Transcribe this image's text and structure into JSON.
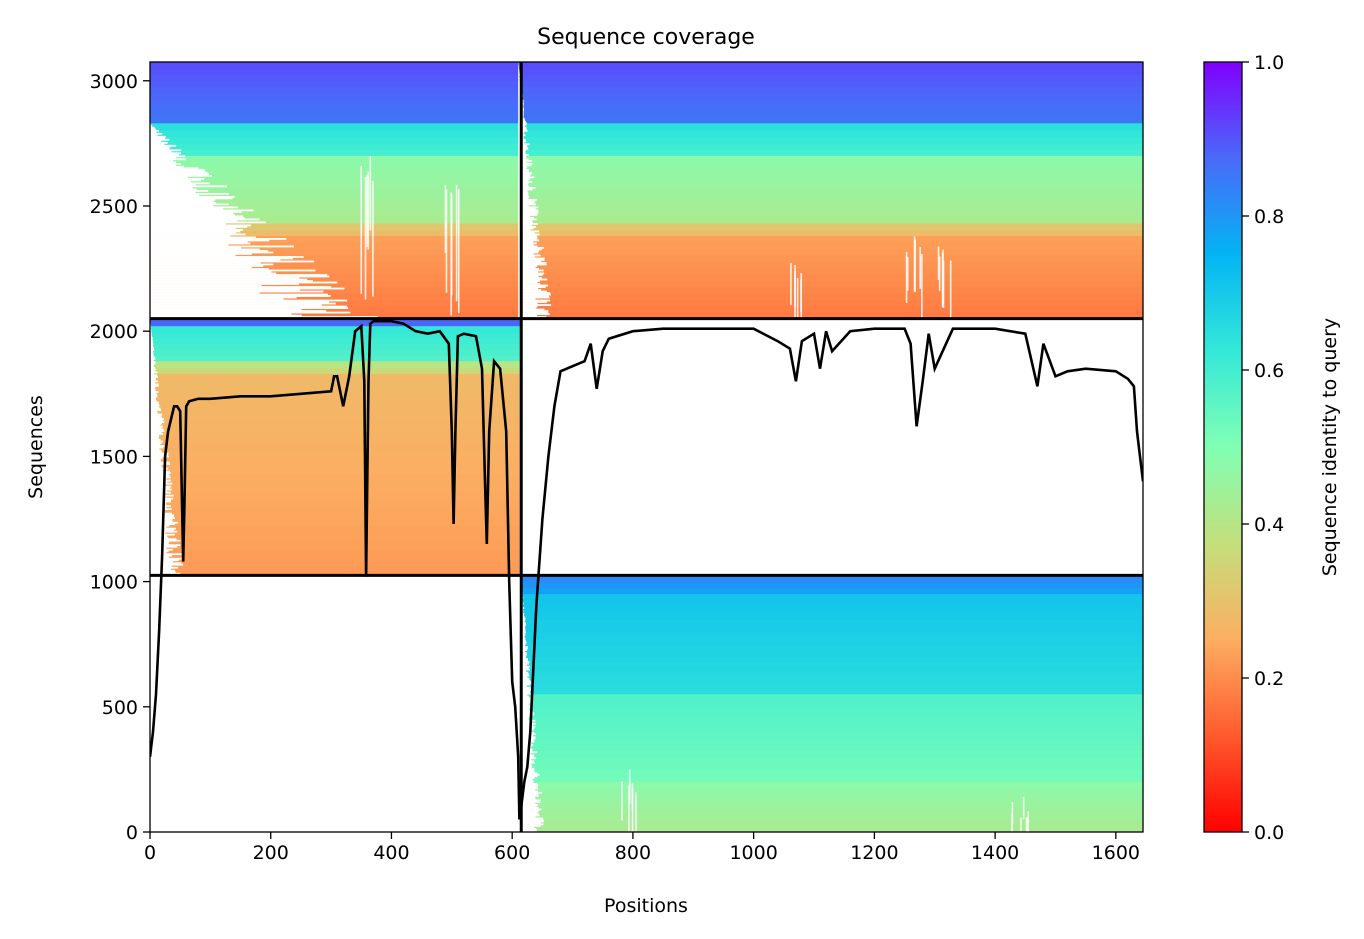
{
  "chart_data": {
    "type": "heatmap",
    "title": "Sequence coverage",
    "xlabel": "Positions",
    "ylabel": "Sequences",
    "xlim": [
      0,
      1645
    ],
    "ylim": [
      0,
      3075
    ],
    "xticks": [
      0,
      200,
      400,
      600,
      800,
      1000,
      1200,
      1400,
      1600
    ],
    "yticks": [
      0,
      500,
      1000,
      1500,
      2000,
      2500,
      3000
    ],
    "colorbar": {
      "label": "Sequence identity to query",
      "range": [
        0,
        1
      ],
      "ticks": [
        0.0,
        0.2,
        0.4,
        0.6,
        0.8,
        1.0
      ],
      "colormap": "rainbow_r"
    },
    "block_dividers": {
      "x": [
        615
      ],
      "y": [
        1025,
        2050
      ]
    },
    "blocks": [
      {
        "x": [
          0,
          615
        ],
        "y": [
          2050,
          3075
        ],
        "bands": [
          {
            "y": [
              2830,
              3075
            ],
            "identity": 0.88
          },
          {
            "y": [
              2700,
              2830
            ],
            "identity": 0.62
          },
          {
            "y": [
              2430,
              2700
            ],
            "identity": 0.45
          },
          {
            "y": [
              2380,
              2430
            ],
            "identity": 0.3
          },
          {
            "y": [
              2050,
              2380
            ],
            "identity": 0.2
          }
        ]
      },
      {
        "x": [
          615,
          1645
        ],
        "y": [
          2050,
          3075
        ],
        "bands": [
          {
            "y": [
              2830,
              3075
            ],
            "identity": 0.88
          },
          {
            "y": [
              2700,
              2830
            ],
            "identity": 0.62
          },
          {
            "y": [
              2430,
              2700
            ],
            "identity": 0.45
          },
          {
            "y": [
              2380,
              2430
            ],
            "identity": 0.3
          },
          {
            "y": [
              2050,
              2380
            ],
            "identity": 0.2
          }
        ]
      },
      {
        "x": [
          0,
          615
        ],
        "y": [
          1025,
          2050
        ],
        "bands": [
          {
            "y": [
              2020,
              2050
            ],
            "identity": 0.88
          },
          {
            "y": [
              1880,
              2020
            ],
            "identity": 0.6
          },
          {
            "y": [
              1830,
              1880
            ],
            "identity": 0.38
          },
          {
            "y": [
              1025,
              1830
            ],
            "identity": 0.25
          }
        ]
      },
      {
        "x": [
          615,
          1645
        ],
        "y": [
          0,
          1025
        ],
        "bands": [
          {
            "y": [
              950,
              1025
            ],
            "identity": 0.8
          },
          {
            "y": [
              550,
              950
            ],
            "identity": 0.68
          },
          {
            "y": [
              200,
              550
            ],
            "identity": 0.55
          },
          {
            "y": [
              0,
              200
            ],
            "identity": 0.45
          }
        ]
      }
    ],
    "coverage_line": {
      "x": [
        0,
        5,
        10,
        15,
        20,
        25,
        30,
        35,
        40,
        45,
        50,
        55,
        57,
        60,
        65,
        80,
        100,
        150,
        200,
        250,
        300,
        305,
        310,
        320,
        330,
        340,
        350,
        355,
        358,
        362,
        365,
        370,
        380,
        400,
        420,
        440,
        460,
        480,
        495,
        500,
        503,
        506,
        510,
        520,
        540,
        550,
        555,
        558,
        562,
        570,
        580,
        590,
        595,
        600,
        605,
        610,
        612,
        615,
        620,
        625,
        630,
        640,
        650,
        660,
        670,
        680,
        700,
        720,
        730,
        740,
        750,
        760,
        800,
        850,
        900,
        950,
        1000,
        1040,
        1060,
        1070,
        1080,
        1100,
        1110,
        1120,
        1130,
        1160,
        1200,
        1250,
        1260,
        1270,
        1280,
        1290,
        1300,
        1330,
        1350,
        1400,
        1450,
        1470,
        1480,
        1500,
        1520,
        1550,
        1600,
        1620,
        1630,
        1635,
        1640,
        1645
      ],
      "y": [
        300,
        400,
        550,
        800,
        1100,
        1500,
        1600,
        1650,
        1700,
        1700,
        1680,
        1080,
        1300,
        1700,
        1720,
        1730,
        1730,
        1740,
        1740,
        1750,
        1760,
        1820,
        1820,
        1700,
        1820,
        2000,
        2020,
        1800,
        1020,
        1800,
        2030,
        2040,
        2040,
        2040,
        2030,
        2000,
        1990,
        2000,
        1950,
        1600,
        1230,
        1600,
        1980,
        1990,
        1980,
        1850,
        1400,
        1150,
        1600,
        1880,
        1850,
        1600,
        1000,
        600,
        500,
        300,
        50,
        100,
        200,
        260,
        400,
        900,
        1250,
        1500,
        1700,
        1840,
        1860,
        1880,
        1950,
        1770,
        1920,
        1970,
        2000,
        2010,
        2010,
        2010,
        2010,
        1960,
        1930,
        1800,
        1960,
        1990,
        1850,
        2000,
        1920,
        2000,
        2010,
        2010,
        1950,
        1620,
        1800,
        1990,
        1850,
        2010,
        2010,
        2010,
        1990,
        1780,
        1950,
        1820,
        1840,
        1850,
        1840,
        1810,
        1780,
        1600,
        1500,
        1400
      ]
    }
  }
}
